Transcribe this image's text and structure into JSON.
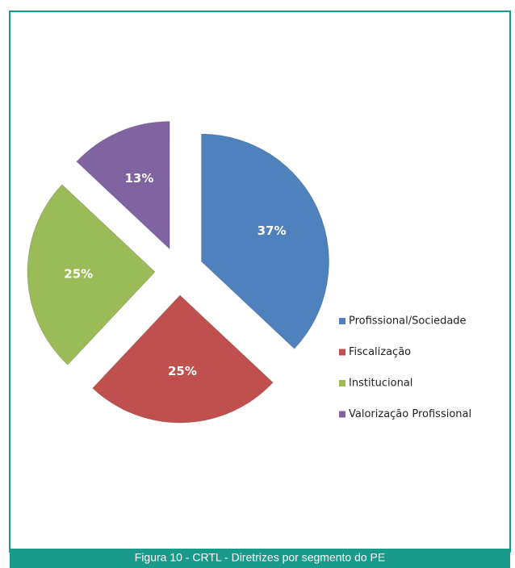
{
  "chart_data": {
    "type": "pie",
    "categories": [
      "Profissional/Sociedade",
      "Fiscalização",
      "Institucional",
      "Valorização Profissional"
    ],
    "values": [
      37,
      25,
      25,
      13
    ],
    "value_labels": [
      "37%",
      "25%",
      "25%",
      "13%"
    ],
    "colors": [
      "#4f81bd",
      "#c0504d",
      "#9bbb59",
      "#8064a2"
    ],
    "legend": "right",
    "caption": "Figura 10 - CRTL - Diretrizes por segmento do PE"
  }
}
